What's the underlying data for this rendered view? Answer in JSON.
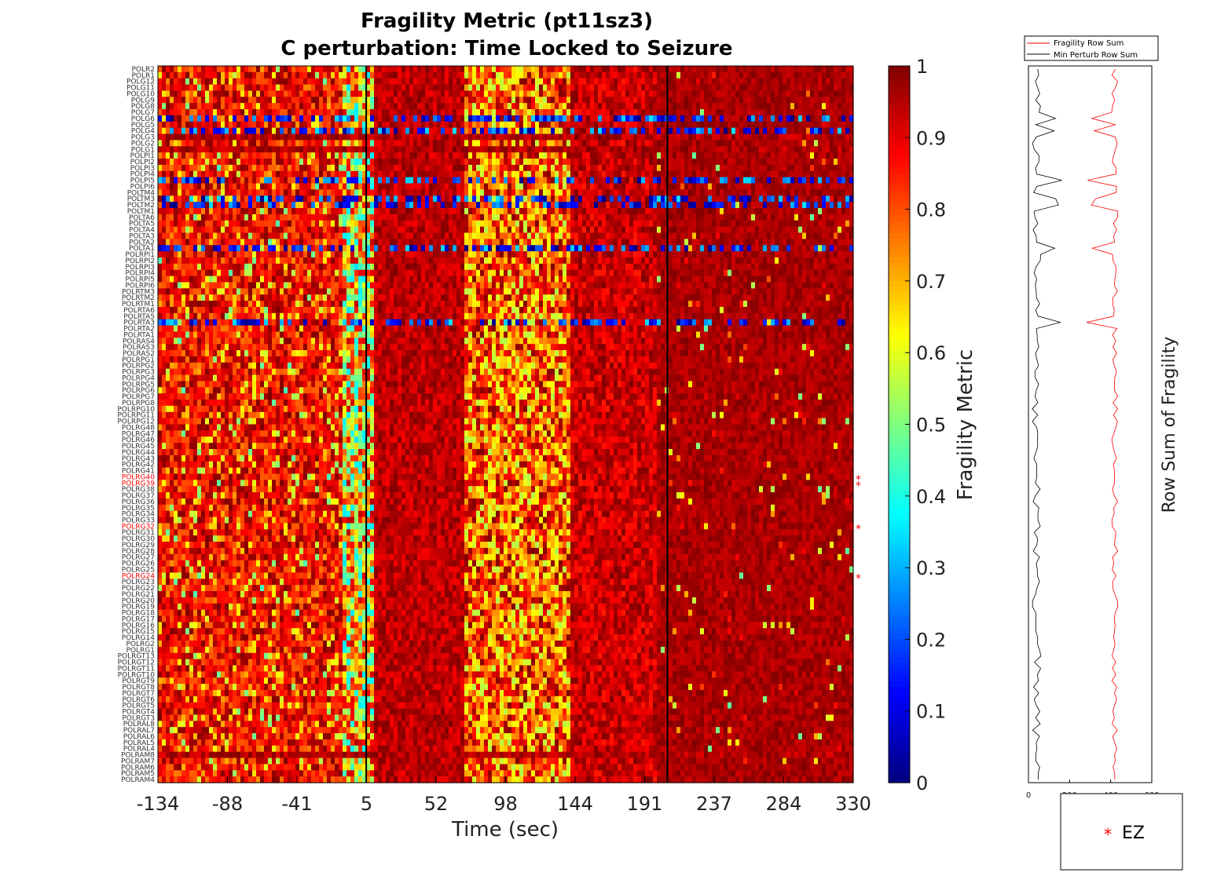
{
  "chart_data": [
    {
      "type": "heatmap",
      "title": "Fragility Metric (pt11sz3)",
      "subtitle": "C perturbation:  Time Locked to Seizure",
      "xlabel": "Time (sec)",
      "ylabel": "",
      "x_ticks": [
        "-134",
        "-88",
        "-41",
        "5",
        "52",
        "98",
        "144",
        "191",
        "237",
        "284",
        "330"
      ],
      "xlim": [
        -134,
        330
      ],
      "vlines_sec": [
        5,
        206
      ],
      "colorbar": {
        "label": "Fragility Metric",
        "range": [
          0,
          1
        ],
        "ticks": [
          "0",
          "0.1",
          "0.2",
          "0.3",
          "0.4",
          "0.5",
          "0.6",
          "0.7",
          "0.8",
          "0.9",
          "1"
        ],
        "colormap": "jet"
      },
      "channels": [
        "POLR2",
        "POLR1",
        "POLG12",
        "POLG11",
        "POLG10",
        "POLG9",
        "POLG8",
        "POLG7",
        "POLG6",
        "POLG5",
        "POLG4",
        "POLG3",
        "POLG2",
        "POLG1",
        "POLPI1",
        "POLPI2",
        "POLPI3",
        "POLPI4",
        "POLPI5",
        "POLPI6",
        "POLTM4",
        "POLTM3",
        "POLTM2",
        "POLTM1",
        "POLTA6",
        "POLTA5",
        "POLTA4",
        "POLTA3",
        "POLTA2",
        "POLTA1",
        "POLRPI1",
        "POLRPI2",
        "POLRPI3",
        "POLRPI4",
        "POLRPI5",
        "POLRPI6",
        "POLRTM3",
        "POLRTM2",
        "POLRTM1",
        "POLRTA6",
        "POLRTA5",
        "POLRTA3",
        "POLRTA2",
        "POLRTA1",
        "POLRAS4",
        "POLRAS3",
        "POLRAS2",
        "POLRPG1",
        "POLRPG2",
        "POLRPG3",
        "POLRPG4",
        "POLRPG5",
        "POLRPG6",
        "POLRPG7",
        "POLRPG8",
        "POLRPG10",
        "POLRPG11",
        "POLRPG12",
        "POLRG48",
        "POLRG47",
        "POLRG46",
        "POLRG45",
        "POLRG44",
        "POLRG43",
        "POLRG42",
        "POLRG41",
        "POLRG40",
        "POLRG39",
        "POLRG38",
        "POLRG37",
        "POLRG36",
        "POLRG35",
        "POLRG34",
        "POLRG33",
        "POLRG32",
        "POLRG31",
        "POLRG30",
        "POLRG29",
        "POLRG28",
        "POLRG27",
        "POLRG26",
        "POLRG25",
        "POLRG24",
        "POLRG23",
        "POLRG22",
        "POLRG21",
        "POLRG20",
        "POLRG19",
        "POLRG18",
        "POLRG17",
        "POLRG16",
        "POLRG15",
        "POLRG14",
        "POLRG2",
        "POLRG1",
        "POLRGT13",
        "POLRGT12",
        "POLRGT11",
        "POLRGT10",
        "POLRGT9",
        "POLRGT8",
        "POLRGT7",
        "POLRGT6",
        "POLRGT5",
        "POLRGT4",
        "POLRGT3",
        "POLRAL8",
        "POLRAL7",
        "POLRAL6",
        "POLRAL5",
        "POLRAL4",
        "POLRAM8",
        "POLRAM7",
        "POLRAM6",
        "POLRAM5",
        "POLRAM4"
      ],
      "ez_channels": [
        "POLRG40",
        "POLRG39",
        "POLRG32",
        "POLRG24"
      ],
      "ez_color": "#ff0000",
      "low_rows": [
        "POLG6",
        "POLG4",
        "POLPI5",
        "POLTM3",
        "POLTM2",
        "POLTA1",
        "POLRTA3"
      ],
      "high_rows": [
        "POLG1",
        "POLG3",
        "POLRAM8"
      ]
    },
    {
      "type": "line",
      "series": [
        {
          "name": "Fragility Row Sum",
          "color": "#ff0000"
        },
        {
          "name": "Min Perturb Row Sum",
          "color": "#000000"
        }
      ],
      "x_ticks": [
        "0",
        "200",
        "400",
        "600"
      ],
      "xlim": [
        0,
        600
      ],
      "ylabel": "Row Sum of Fragility",
      "fragility_baseline": 420,
      "min_perturb_baseline": 40
    }
  ],
  "ez_legend": {
    "marker": "*",
    "label": "EZ",
    "color": "#ff0000"
  }
}
